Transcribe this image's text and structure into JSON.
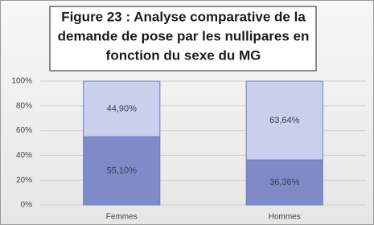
{
  "chart_data": {
    "type": "stacked_bar",
    "title": [
      "Figure 23 : Analyse comparative de la",
      "demande de pose par les nullipares en",
      "fonction du sexe du MG"
    ],
    "categories": [
      "Femmes",
      "Hommes"
    ],
    "series": [
      {
        "color": "#7f8ac9",
        "values": [
          55.1,
          36.36
        ],
        "value_labels": [
          "55,10%",
          "36,36%"
        ]
      },
      {
        "color": "#c9cfec",
        "values": [
          44.9,
          63.64
        ],
        "value_labels": [
          "44,90%",
          "63,64%"
        ]
      }
    ],
    "ylim": [
      0,
      100
    ],
    "yticks": [
      {
        "value": 0,
        "label": "0%"
      },
      {
        "value": 20,
        "label": "20%"
      },
      {
        "value": 40,
        "label": "40%"
      },
      {
        "value": 60,
        "label": "60%"
      },
      {
        "value": 80,
        "label": "80%"
      },
      {
        "value": 100,
        "label": "100%"
      }
    ],
    "grid": true
  }
}
